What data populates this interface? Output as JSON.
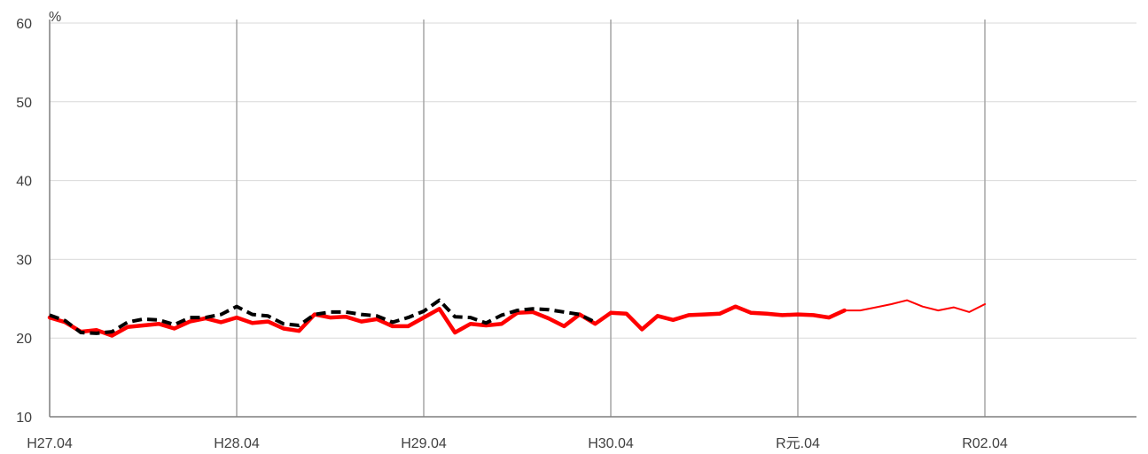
{
  "chart_data": {
    "type": "line",
    "title": "",
    "xlabel": "",
    "ylabel": "",
    "y_unit": "%",
    "ylim": [
      10,
      60
    ],
    "y_ticks": [
      "10",
      "20",
      "30",
      "40",
      "50",
      "60"
    ],
    "x_ticks": [
      "H27.04",
      "H28.04",
      "H29.04",
      "H30.04",
      "R元.04",
      "R02.04"
    ],
    "x_months_total": 72,
    "grid": {
      "vertical": true,
      "horizontal": true
    },
    "legend": "none",
    "colors": {
      "solid": "#ff0000",
      "dashed": "#000000",
      "grid_major": "#a6a6a6",
      "grid_minor": "#d9d9d9",
      "axis": "#7f7f7f"
    },
    "series": [
      {
        "style": "solid-thick",
        "values": [
          22.6,
          22.0,
          20.8,
          21.0,
          20.3,
          21.4,
          21.6,
          21.8,
          21.2,
          22.1,
          22.5,
          22.0,
          22.6,
          21.9,
          22.1,
          21.2,
          20.9,
          23.0,
          22.6,
          22.7,
          22.1,
          22.4,
          21.5,
          21.5,
          22.6,
          23.7,
          20.7,
          21.8,
          21.6,
          21.8,
          23.2,
          23.3,
          22.5,
          21.5,
          23.0,
          21.8,
          23.2,
          23.1,
          21.1,
          22.8,
          22.3,
          22.9,
          23.0,
          23.1,
          24.0,
          23.2,
          23.1,
          22.9,
          23.0,
          22.9,
          22.6,
          23.5
        ]
      },
      {
        "style": "solid-thin",
        "x_start": 51,
        "values": [
          23.5,
          23.5,
          23.9,
          24.3,
          24.8,
          24.0,
          23.5,
          23.9,
          23.3,
          24.3
        ]
      },
      {
        "style": "dashed",
        "values": [
          22.9,
          22.2,
          20.7,
          20.6,
          20.8,
          22.0,
          22.4,
          22.3,
          21.7,
          22.6,
          22.6,
          23.0,
          24.0,
          23.0,
          22.8,
          21.8,
          21.6,
          23.0,
          23.3,
          23.3,
          23.0,
          22.8,
          22.0,
          22.6,
          23.4,
          24.8,
          22.7,
          22.6,
          21.9,
          22.9,
          23.5,
          23.7,
          23.6,
          23.3,
          23.0,
          22.0
        ]
      }
    ]
  }
}
